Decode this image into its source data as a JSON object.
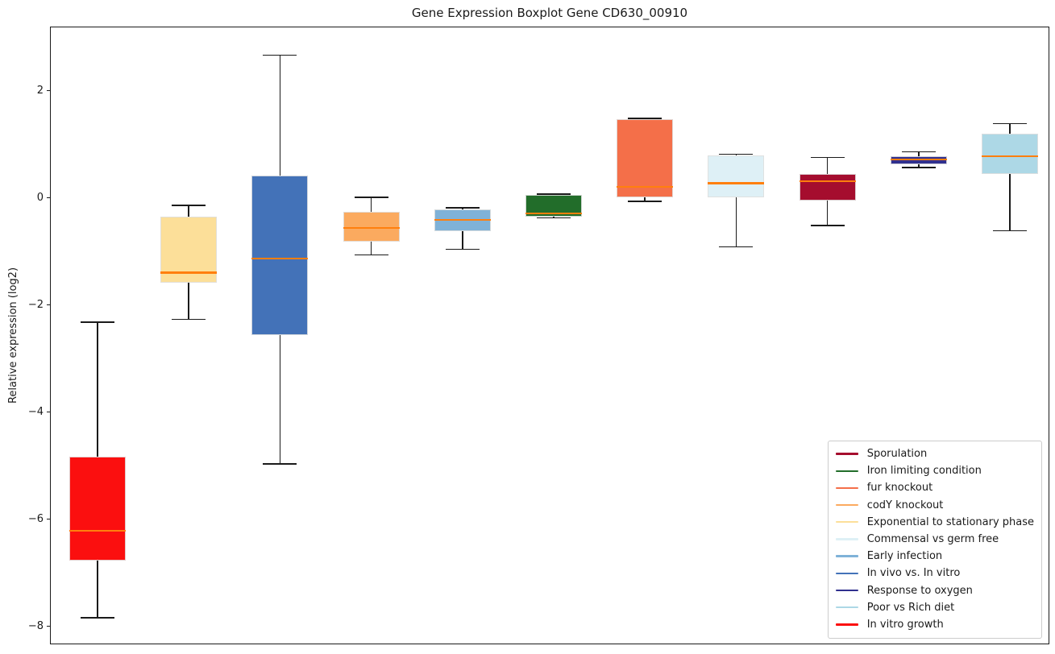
{
  "figure": {
    "title": "Gene Expression Boxplot Gene CD630_00910",
    "ylabel": "Relative expression (log2)"
  },
  "chart_data": {
    "type": "boxplot",
    "title": "Gene Expression Boxplot Gene CD630_00910",
    "xlabel": "",
    "ylabel": "Relative expression (log2)",
    "ylim": [
      -8.33,
      3.2
    ],
    "yticks": [
      2,
      0,
      -2,
      -4,
      -6,
      -8
    ],
    "grid": false,
    "x_tick_labels": [],
    "median_color": "#ff7f0e",
    "whisker_color": "#1a1a1a",
    "legend_position": "lower right",
    "boxes": [
      {
        "name": "In vitro growth",
        "color": "#fb0f0f",
        "whisker_low": -7.82,
        "q1": -6.76,
        "median": -6.2,
        "q3": -4.82,
        "whisker_high": -2.3
      },
      {
        "name": "Exponential to stationary phase",
        "color": "#fcdf99",
        "whisker_low": -2.25,
        "q1": -1.56,
        "median": -1.38,
        "q3": -0.34,
        "whisker_high": -0.12
      },
      {
        "name": "In vivo vs. In vitro",
        "color": "#4372b8",
        "whisker_low": -4.95,
        "q1": -2.55,
        "median": -1.12,
        "q3": 0.43,
        "whisker_high": 2.68
      },
      {
        "name": "codY knockout",
        "color": "#fbaa5f",
        "whisker_low": -1.05,
        "q1": -0.8,
        "median": -0.54,
        "q3": -0.24,
        "whisker_high": 0.03
      },
      {
        "name": "Early infection",
        "color": "#7fb2d8",
        "whisker_low": -0.94,
        "q1": -0.6,
        "median": -0.39,
        "q3": -0.2,
        "whisker_high": -0.17
      },
      {
        "name": "Iron limiting condition",
        "color": "#226d2a",
        "whisker_low": -0.36,
        "q1": -0.33,
        "median": -0.27,
        "q3": 0.07,
        "whisker_high": 0.09
      },
      {
        "name": "fur knockout",
        "color": "#f46f49",
        "whisker_low": -0.05,
        "q1": 0.03,
        "median": 0.22,
        "q3": 1.48,
        "whisker_high": 1.5
      },
      {
        "name": "Commensal vs germ free",
        "color": "#def0f6",
        "whisker_low": -0.9,
        "q1": 0.02,
        "median": 0.29,
        "q3": 0.81,
        "whisker_high": 0.83
      },
      {
        "name": "Sporulation",
        "color": "#a50d2e",
        "whisker_low": -0.5,
        "q1": -0.03,
        "median": 0.33,
        "q3": 0.46,
        "whisker_high": 0.77
      },
      {
        "name": "Response to oxygen",
        "color": "#30308e",
        "whisker_low": 0.58,
        "q1": 0.64,
        "median": 0.73,
        "q3": 0.8,
        "whisker_high": 0.88
      },
      {
        "name": "Poor vs Rich diet",
        "color": "#add8e6",
        "whisker_low": -0.6,
        "q1": 0.46,
        "median": 0.8,
        "q3": 1.22,
        "whisker_high": 1.4
      }
    ],
    "legend": [
      {
        "label": "Sporulation",
        "color": "#a50d2e"
      },
      {
        "label": "Iron limiting condition",
        "color": "#226d2a"
      },
      {
        "label": "fur knockout",
        "color": "#f46f49"
      },
      {
        "label": "codY knockout",
        "color": "#fbaa5f"
      },
      {
        "label": "Exponential to stationary phase",
        "color": "#fcdf99"
      },
      {
        "label": "Commensal vs germ free",
        "color": "#def0f6"
      },
      {
        "label": "Early infection",
        "color": "#7fb2d8"
      },
      {
        "label": "In vivo vs. In vitro",
        "color": "#4372b8"
      },
      {
        "label": "Response to oxygen",
        "color": "#30308e"
      },
      {
        "label": "Poor vs Rich diet",
        "color": "#add8e6"
      },
      {
        "label": "In vitro growth",
        "color": "#fb0f0f"
      }
    ]
  }
}
